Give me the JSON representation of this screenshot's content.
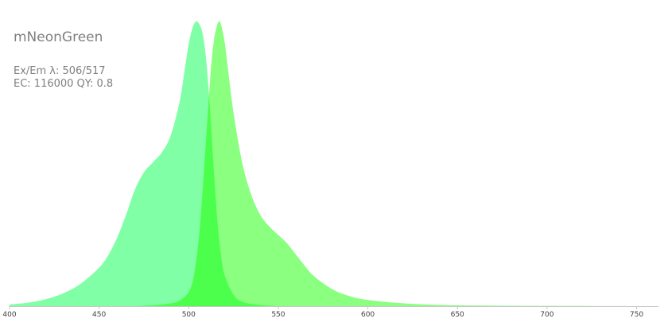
{
  "chart_data": {
    "type": "area",
    "title": "mNeonGreen",
    "info_lines": [
      "Ex/Em λ: 506/517",
      "EC: 116000  QY: 0.8"
    ],
    "xlabel": "",
    "ylabel": "",
    "xlim": [
      400,
      752
    ],
    "ylim": [
      0,
      1
    ],
    "x_ticks": [
      400,
      450,
      500,
      550,
      600,
      650,
      700,
      750
    ],
    "x_tick_labels": [
      "400",
      "450",
      "500",
      "550",
      "600",
      "650",
      "700",
      "750"
    ],
    "grid": false,
    "legend": "none",
    "colors": {
      "excitation": "#80FFA6",
      "emission": "#8AFF80",
      "overlap": "#4CFF4C",
      "axis": "#c8c8c8",
      "text": "#808080",
      "tick_text": "#404040"
    },
    "series": [
      {
        "key": "excitation",
        "x": [
          400,
          410,
          420,
          430,
          440,
          450,
          455,
          460,
          465,
          470,
          475,
          480,
          485,
          490,
          495,
          498,
          500,
          502,
          504,
          506,
          508,
          510,
          512,
          514,
          516,
          518,
          520,
          525,
          530,
          540,
          550
        ],
        "values": [
          0.006,
          0.012,
          0.024,
          0.045,
          0.08,
          0.135,
          0.178,
          0.24,
          0.32,
          0.41,
          0.47,
          0.505,
          0.54,
          0.6,
          0.72,
          0.84,
          0.92,
          0.975,
          1.0,
          0.99,
          0.95,
          0.85,
          0.68,
          0.48,
          0.3,
          0.18,
          0.11,
          0.04,
          0.015,
          0.004,
          0.0
        ]
      },
      {
        "key": "emission",
        "x": [
          470,
          480,
          490,
          495,
          500,
          503,
          506,
          509,
          512,
          514,
          516,
          517,
          518,
          520,
          522,
          525,
          530,
          535,
          540,
          545,
          550,
          555,
          560,
          565,
          570,
          580,
          590,
          600,
          620,
          650,
          700,
          752
        ],
        "values": [
          0.0,
          0.003,
          0.01,
          0.02,
          0.05,
          0.11,
          0.26,
          0.52,
          0.8,
          0.93,
          0.99,
          1.0,
          0.99,
          0.93,
          0.83,
          0.68,
          0.5,
          0.39,
          0.32,
          0.28,
          0.25,
          0.22,
          0.18,
          0.14,
          0.105,
          0.06,
          0.035,
          0.022,
          0.01,
          0.003,
          0.001,
          0.0
        ]
      }
    ]
  }
}
